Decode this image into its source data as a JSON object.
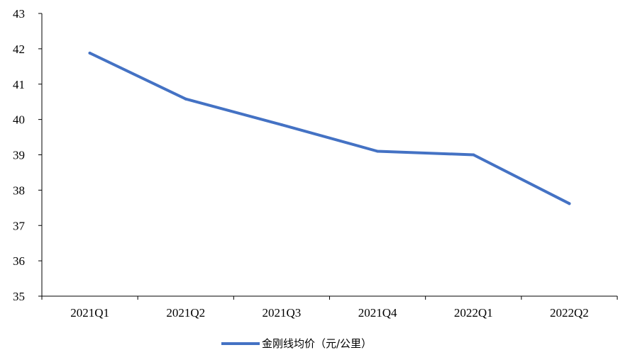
{
  "chart_data": {
    "type": "line",
    "categories": [
      "2021Q1",
      "2021Q2",
      "2021Q3",
      "2021Q4",
      "2022Q1",
      "2022Q2"
    ],
    "series": [
      {
        "name": "金刚线均价（元/公里）",
        "values": [
          41.88,
          40.58,
          39.85,
          39.1,
          39.0,
          37.62
        ],
        "color": "#4472C4"
      }
    ],
    "title": "",
    "xlabel": "",
    "ylabel": "",
    "ylim": [
      35,
      43
    ],
    "yticks": [
      35,
      36,
      37,
      38,
      39,
      40,
      41,
      42,
      43
    ],
    "grid": false,
    "legend_position": "bottom"
  }
}
